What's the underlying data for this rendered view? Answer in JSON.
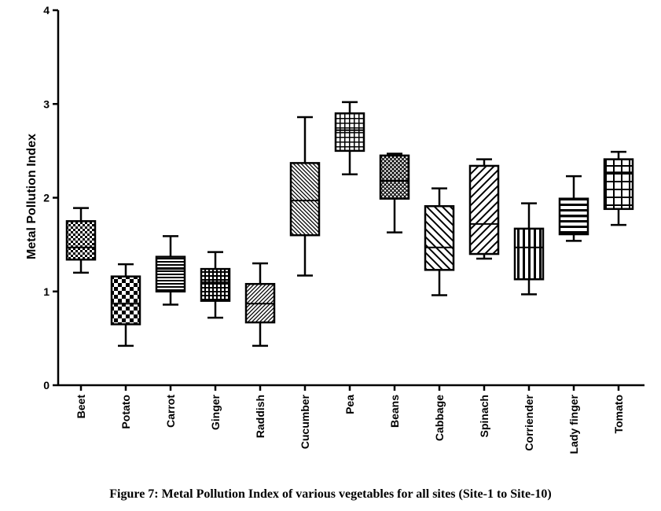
{
  "caption": "Figure 7: Metal Pollution Index of various vegetables for all sites (Site-1 to Site-10)",
  "chart_data": {
    "type": "box",
    "ylabel": "Metal Pollution Index",
    "xlabel": "",
    "ylim": [
      0,
      4
    ],
    "yticks": [
      0,
      1,
      2,
      3,
      4
    ],
    "grid": false,
    "categories": [
      "Beet",
      "Potato",
      "Carrot",
      "Ginger",
      "Raddish",
      "Cucumber",
      "Pea",
      "Beans",
      "Cabbage",
      "Spinach",
      "Corriender",
      "Lady finger",
      "Tomato"
    ],
    "boxes": [
      {
        "min": 1.2,
        "q1": 1.34,
        "median": 1.47,
        "q3": 1.75,
        "max": 1.89,
        "pattern": "checker"
      },
      {
        "min": 0.42,
        "q1": 0.65,
        "median": 0.87,
        "q3": 1.16,
        "max": 1.29,
        "pattern": "checker-coarse"
      },
      {
        "min": 0.86,
        "q1": 1.0,
        "median": 1.24,
        "q3": 1.37,
        "max": 1.59,
        "pattern": "horizontal"
      },
      {
        "min": 0.72,
        "q1": 0.9,
        "median": 1.1,
        "q3": 1.24,
        "max": 1.42,
        "pattern": "grid-dense"
      },
      {
        "min": 0.42,
        "q1": 0.67,
        "median": 0.87,
        "q3": 1.08,
        "max": 1.3,
        "pattern": "diag-right-dense"
      },
      {
        "min": 1.17,
        "q1": 1.6,
        "median": 1.97,
        "q3": 2.37,
        "max": 2.86,
        "pattern": "diag-left-dense"
      },
      {
        "min": 2.25,
        "q1": 2.5,
        "median": 2.72,
        "q3": 2.9,
        "max": 3.02,
        "pattern": "grid"
      },
      {
        "min": 1.63,
        "q1": 1.99,
        "median": 2.18,
        "q3": 2.45,
        "max": 2.47,
        "pattern": "crosshatch"
      },
      {
        "min": 0.96,
        "q1": 1.23,
        "median": 1.47,
        "q3": 1.91,
        "max": 2.1,
        "pattern": "diag-left"
      },
      {
        "min": 1.35,
        "q1": 1.4,
        "median": 1.72,
        "q3": 2.34,
        "max": 2.41,
        "pattern": "diag-right"
      },
      {
        "min": 0.97,
        "q1": 1.13,
        "median": 1.47,
        "q3": 1.67,
        "max": 1.94,
        "pattern": "vertical"
      },
      {
        "min": 1.54,
        "q1": 1.61,
        "median": 1.8,
        "q3": 1.99,
        "max": 2.23,
        "pattern": "horizontal-wide"
      },
      {
        "min": 1.71,
        "q1": 1.88,
        "median": 2.27,
        "q3": 2.41,
        "max": 2.49,
        "pattern": "grid-wide"
      }
    ]
  }
}
